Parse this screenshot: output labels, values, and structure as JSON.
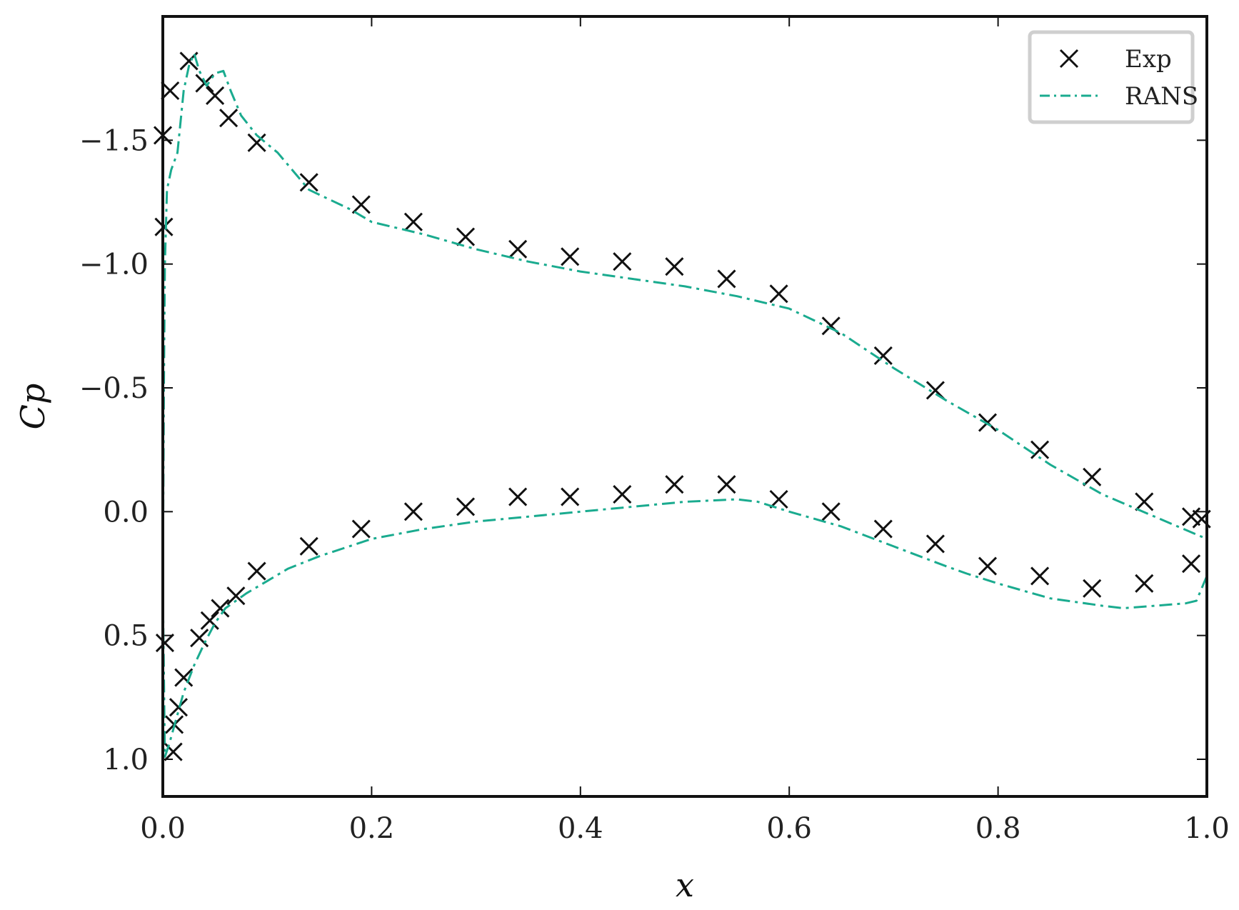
{
  "chart_data": {
    "type": "line",
    "title": "",
    "xlabel": "x",
    "ylabel": "Cp",
    "xlim": [
      0.0,
      1.0
    ],
    "ylim": [
      1.15,
      -2.0
    ],
    "y_inverted": true,
    "grid": false,
    "legend_position": "top-right",
    "xticks": [
      0.0,
      0.2,
      0.4,
      0.6,
      0.8,
      1.0
    ],
    "xtick_labels": [
      "0.0",
      "0.2",
      "0.4",
      "0.6",
      "0.8",
      "1.0"
    ],
    "yticks": [
      -1.5,
      -1.0,
      -0.5,
      0.0,
      0.5,
      1.0
    ],
    "ytick_labels": [
      "−1.5",
      "−1.0",
      "−0.5",
      "0.0",
      "0.5",
      "1.0"
    ],
    "series": [
      {
        "name": "Exp",
        "style": "markers-x",
        "color": "#111111",
        "points": [
          [
            0.0,
            -1.52
          ],
          [
            0.001,
            -1.15
          ],
          [
            0.007,
            -1.7
          ],
          [
            0.025,
            -1.82
          ],
          [
            0.04,
            -1.73
          ],
          [
            0.05,
            -1.68
          ],
          [
            0.063,
            -1.59
          ],
          [
            0.09,
            -1.49
          ],
          [
            0.14,
            -1.33
          ],
          [
            0.19,
            -1.24
          ],
          [
            0.24,
            -1.17
          ],
          [
            0.29,
            -1.11
          ],
          [
            0.34,
            -1.06
          ],
          [
            0.39,
            -1.03
          ],
          [
            0.44,
            -1.01
          ],
          [
            0.49,
            -0.99
          ],
          [
            0.54,
            -0.94
          ],
          [
            0.59,
            -0.88
          ],
          [
            0.64,
            -0.75
          ],
          [
            0.69,
            -0.63
          ],
          [
            0.74,
            -0.49
          ],
          [
            0.79,
            -0.36
          ],
          [
            0.84,
            -0.25
          ],
          [
            0.89,
            -0.14
          ],
          [
            0.94,
            -0.04
          ],
          [
            0.985,
            0.02
          ],
          [
            0.995,
            0.03
          ],
          [
            0.002,
            0.53
          ],
          [
            0.01,
            0.97
          ],
          [
            0.011,
            0.86
          ],
          [
            0.015,
            0.79
          ],
          [
            0.02,
            0.67
          ],
          [
            0.035,
            0.51
          ],
          [
            0.045,
            0.44
          ],
          [
            0.055,
            0.39
          ],
          [
            0.07,
            0.34
          ],
          [
            0.09,
            0.24
          ],
          [
            0.14,
            0.14
          ],
          [
            0.19,
            0.07
          ],
          [
            0.24,
            0.0
          ],
          [
            0.29,
            -0.02
          ],
          [
            0.34,
            -0.06
          ],
          [
            0.39,
            -0.06
          ],
          [
            0.44,
            -0.07
          ],
          [
            0.49,
            -0.11
          ],
          [
            0.54,
            -0.11
          ],
          [
            0.59,
            -0.05
          ],
          [
            0.64,
            0.0
          ],
          [
            0.69,
            0.07
          ],
          [
            0.74,
            0.13
          ],
          [
            0.79,
            0.22
          ],
          [
            0.84,
            0.26
          ],
          [
            0.89,
            0.31
          ],
          [
            0.94,
            0.29
          ],
          [
            0.985,
            0.21
          ]
        ]
      },
      {
        "name": "RANS",
        "style": "dash-dot",
        "color": "#1aab8f",
        "points": [
          [
            1.0,
            0.26
          ],
          [
            0.99,
            0.36
          ],
          [
            0.98,
            0.37
          ],
          [
            0.95,
            0.38
          ],
          [
            0.92,
            0.39
          ],
          [
            0.9,
            0.38
          ],
          [
            0.85,
            0.35
          ],
          [
            0.8,
            0.29
          ],
          [
            0.77,
            0.25
          ],
          [
            0.75,
            0.22
          ],
          [
            0.7,
            0.14
          ],
          [
            0.65,
            0.06
          ],
          [
            0.6,
            0.0
          ],
          [
            0.57,
            -0.04
          ],
          [
            0.55,
            -0.05
          ],
          [
            0.5,
            -0.04
          ],
          [
            0.45,
            -0.02
          ],
          [
            0.4,
            0.0
          ],
          [
            0.35,
            0.02
          ],
          [
            0.3,
            0.04
          ],
          [
            0.25,
            0.07
          ],
          [
            0.2,
            0.11
          ],
          [
            0.15,
            0.18
          ],
          [
            0.12,
            0.23
          ],
          [
            0.1,
            0.28
          ],
          [
            0.08,
            0.33
          ],
          [
            0.06,
            0.39
          ],
          [
            0.05,
            0.45
          ],
          [
            0.04,
            0.53
          ],
          [
            0.03,
            0.62
          ],
          [
            0.02,
            0.73
          ],
          [
            0.012,
            0.85
          ],
          [
            0.006,
            0.94
          ],
          [
            0.002,
            0.99
          ],
          [
            0.0,
            0.3
          ],
          [
            0.001,
            -0.5
          ],
          [
            0.002,
            -1.0
          ],
          [
            0.004,
            -1.3
          ],
          [
            0.008,
            -1.38
          ],
          [
            0.014,
            -1.45
          ],
          [
            0.02,
            -1.7
          ],
          [
            0.025,
            -1.8
          ],
          [
            0.03,
            -1.85
          ],
          [
            0.035,
            -1.78
          ],
          [
            0.042,
            -1.72
          ],
          [
            0.05,
            -1.77
          ],
          [
            0.058,
            -1.78
          ],
          [
            0.065,
            -1.7
          ],
          [
            0.075,
            -1.6
          ],
          [
            0.09,
            -1.52
          ],
          [
            0.11,
            -1.45
          ],
          [
            0.14,
            -1.3
          ],
          [
            0.18,
            -1.22
          ],
          [
            0.2,
            -1.17
          ],
          [
            0.25,
            -1.12
          ],
          [
            0.3,
            -1.06
          ],
          [
            0.35,
            -1.01
          ],
          [
            0.4,
            -0.97
          ],
          [
            0.45,
            -0.94
          ],
          [
            0.5,
            -0.91
          ],
          [
            0.55,
            -0.87
          ],
          [
            0.6,
            -0.82
          ],
          [
            0.65,
            -0.72
          ],
          [
            0.7,
            -0.58
          ],
          [
            0.75,
            -0.45
          ],
          [
            0.8,
            -0.33
          ],
          [
            0.85,
            -0.19
          ],
          [
            0.9,
            -0.07
          ],
          [
            0.95,
            0.02
          ],
          [
            1.0,
            0.11
          ]
        ]
      }
    ]
  }
}
